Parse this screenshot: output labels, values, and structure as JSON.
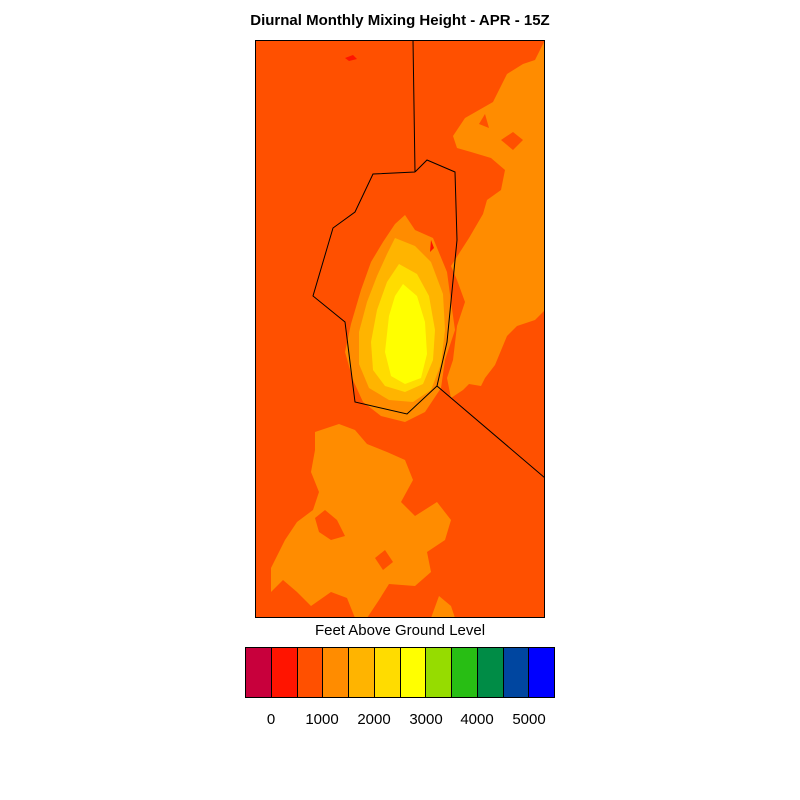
{
  "title": "Diurnal Monthly Mixing Height - APR - 15Z",
  "legend": {
    "title": "Feet Above Ground Level",
    "colors": [
      "#C8003C",
      "#FF1400",
      "#FF5000",
      "#FF8C00",
      "#FFB400",
      "#FFDC00",
      "#FFFF00",
      "#96DC00",
      "#28BE14",
      "#008C46",
      "#0046A0",
      "#0000FF"
    ],
    "tick_labels": [
      "0",
      "1000",
      "2000",
      "3000",
      "4000",
      "5000"
    ]
  },
  "chart_data": {
    "type": "heatmap",
    "title": "Diurnal Monthly Mixing Height - APR - 15Z",
    "colorbar_label": "Feet Above Ground Level",
    "colorbar_ticks": [
      0,
      1000,
      2000,
      3000,
      4000,
      5000
    ],
    "colorbar_range": [
      -250,
      5750
    ],
    "level_interval": 500,
    "background_level_color": "#FF5000",
    "summary": "Mixing height mostly 500-1000 ft, with 1000-1500 ft zones in the northeast and southwest and a central maximum reaching 2500-3000 ft"
  }
}
